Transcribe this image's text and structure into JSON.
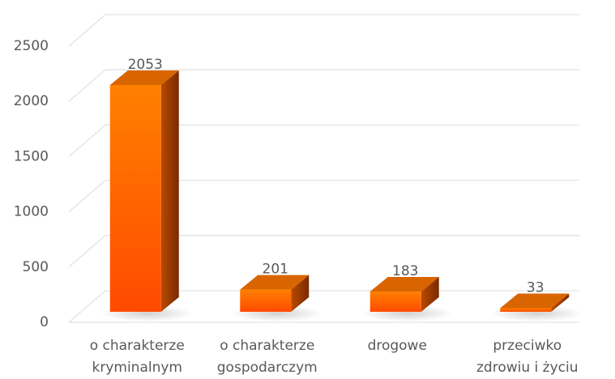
{
  "chart_data": {
    "type": "bar3d",
    "categories": [
      "o charakterze kryminalnym",
      "o charakterze gospodarczym",
      "drogowe",
      "przeciwko zdrowiu i życiu"
    ],
    "values": [
      2053,
      201,
      183,
      33
    ],
    "color": "#ff6a00",
    "ylim": [
      0,
      2500
    ],
    "yticks": [
      0,
      500,
      1000,
      1500,
      2000,
      2500
    ],
    "grid": true
  }
}
